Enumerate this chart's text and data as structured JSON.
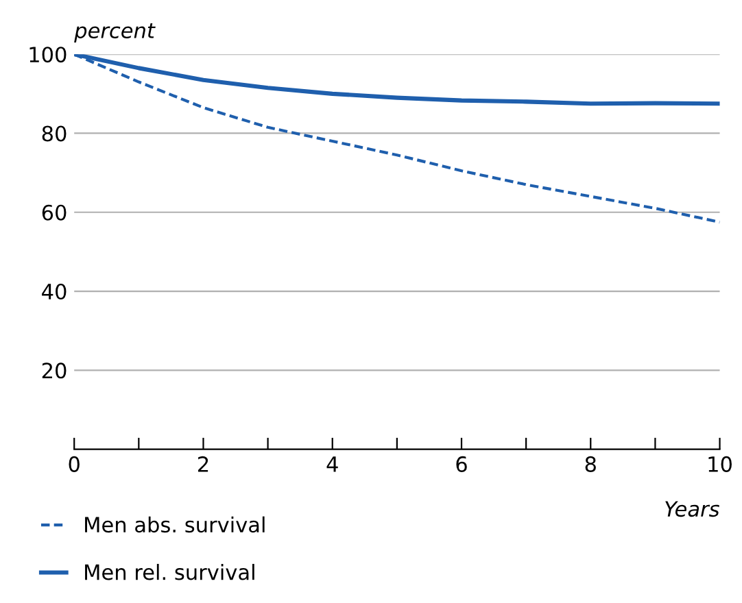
{
  "chart_data": {
    "type": "line",
    "ylabel": "percent",
    "xlabel": "Years",
    "x": [
      0,
      1,
      2,
      3,
      4,
      5,
      6,
      7,
      8,
      9,
      10
    ],
    "series": [
      {
        "name": "Men abs. survival",
        "color": "#1f5fad",
        "line_style": "dashed",
        "values": [
          100,
          93,
          86.5,
          81.5,
          78,
          74.5,
          70.5,
          67,
          64,
          61,
          57.5
        ]
      },
      {
        "name": "Men rel. survival",
        "color": "#1f5fad",
        "line_style": "solid",
        "values": [
          100,
          96.5,
          93.5,
          91.5,
          90,
          89,
          88.3,
          88,
          87.5,
          87.6,
          87.5
        ]
      }
    ],
    "xlim": [
      0,
      10
    ],
    "ylim": [
      0,
      100
    ],
    "xticks": [
      0,
      {
        "value": 1,
        "label": null
      },
      2,
      {
        "value": 3,
        "label": null
      },
      4,
      {
        "value": 5,
        "label": null
      },
      6,
      {
        "value": 7,
        "label": null
      },
      8,
      {
        "value": 9,
        "label": null
      },
      10
    ],
    "yticks": [
      20,
      40,
      60,
      80,
      100
    ],
    "grid": "y",
    "legend": "bottom",
    "marker": "none"
  }
}
